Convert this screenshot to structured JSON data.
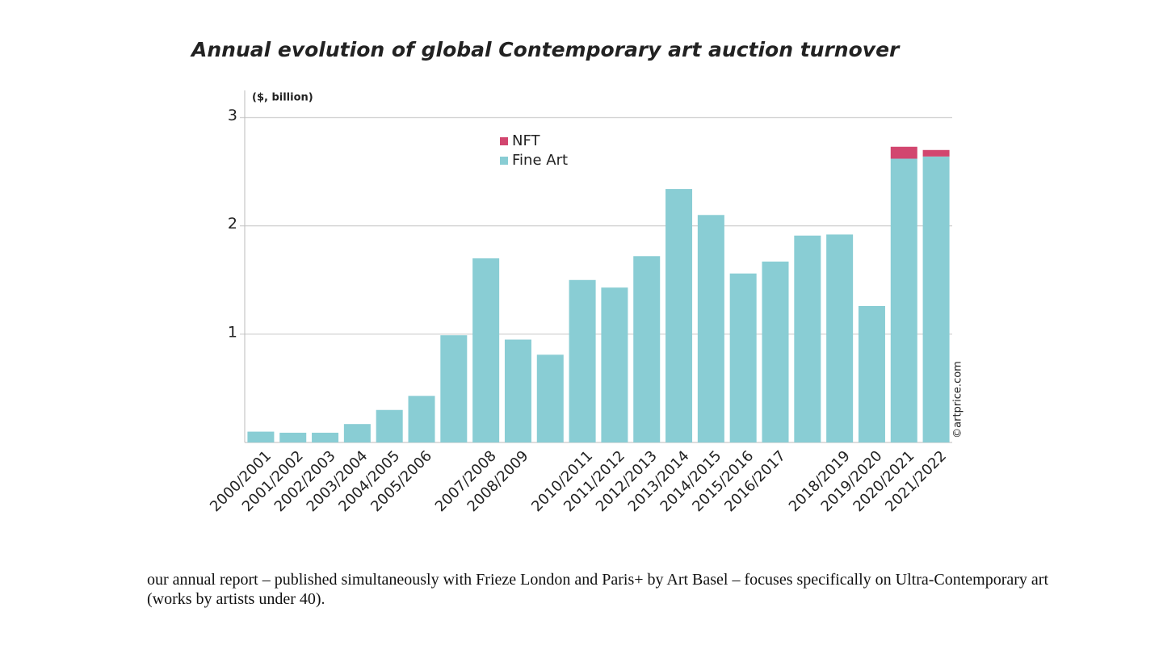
{
  "chart_data": {
    "type": "stacked_bar",
    "title": "Annual evolution of global Contemporary art auction turnover",
    "y_label": "($, billion)",
    "credit": "©artprice.com",
    "categories": [
      "2000/2001",
      "2001/2002",
      "2002/2003",
      "2003/2004",
      "2004/2005",
      "2005/2006",
      null,
      "2007/2008",
      "2008/2009",
      null,
      "2010/2011",
      "2011/2012",
      "2012/2013",
      "2013/2014",
      "2014/2015",
      "2015/2016",
      "2016/2017",
      null,
      "2018/2019",
      "2019/2020",
      "2020/2021",
      "2021/2022"
    ],
    "series": [
      {
        "name": "Fine Art",
        "color": "#89cdd4",
        "values": [
          0.1,
          0.09,
          0.09,
          0.17,
          0.3,
          0.43,
          0.99,
          1.7,
          0.95,
          0.81,
          1.5,
          1.43,
          1.72,
          2.34,
          2.1,
          1.56,
          1.67,
          1.91,
          1.92,
          1.26,
          2.62,
          2.64
        ]
      },
      {
        "name": "NFT",
        "color": "#d2466f",
        "values": [
          null,
          null,
          null,
          null,
          null,
          null,
          null,
          null,
          null,
          null,
          null,
          null,
          null,
          null,
          null,
          null,
          null,
          null,
          null,
          null,
          0.11,
          0.06
        ]
      }
    ],
    "ylim": [
      0,
      3.25
    ],
    "yticks": [
      1,
      2,
      3
    ],
    "grid": true
  },
  "text": {
    "paragraph": "our annual report – published simultaneously with Frieze London and Paris+ by Art Basel – focuses specifically on Ultra-Contemporary art (works by artists under 40)."
  }
}
